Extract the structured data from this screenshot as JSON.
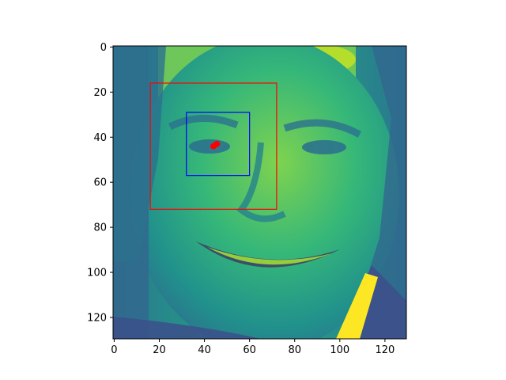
{
  "image": {
    "description_hidden": true,
    "x_ticks": [
      "0",
      "20",
      "40",
      "60",
      "80",
      "100",
      "120"
    ],
    "y_ticks": [
      "0",
      "20",
      "40",
      "60",
      "80",
      "100",
      "120"
    ],
    "x_tick_values": [
      0,
      20,
      40,
      60,
      80,
      100,
      120
    ],
    "y_tick_values": [
      0,
      20,
      40,
      60,
      80,
      100,
      120
    ],
    "extent": {
      "x": [
        -0.5,
        129.5
      ],
      "y": [
        -0.5,
        129.5
      ]
    },
    "colormap": "viridis"
  },
  "overlays": {
    "face_box": {
      "x0": 16,
      "y0": 16,
      "x1": 72,
      "y1": 72,
      "color": "#ff0000"
    },
    "eye_box": {
      "x0": 32,
      "y0": 29,
      "x1": 60,
      "y1": 57,
      "color": "#0000ff"
    },
    "eye_points": [
      {
        "x": 45.5,
        "y": 43,
        "color": "#ff0000"
      },
      {
        "x": 44,
        "y": 44,
        "color": "#ff0000"
      }
    ]
  }
}
